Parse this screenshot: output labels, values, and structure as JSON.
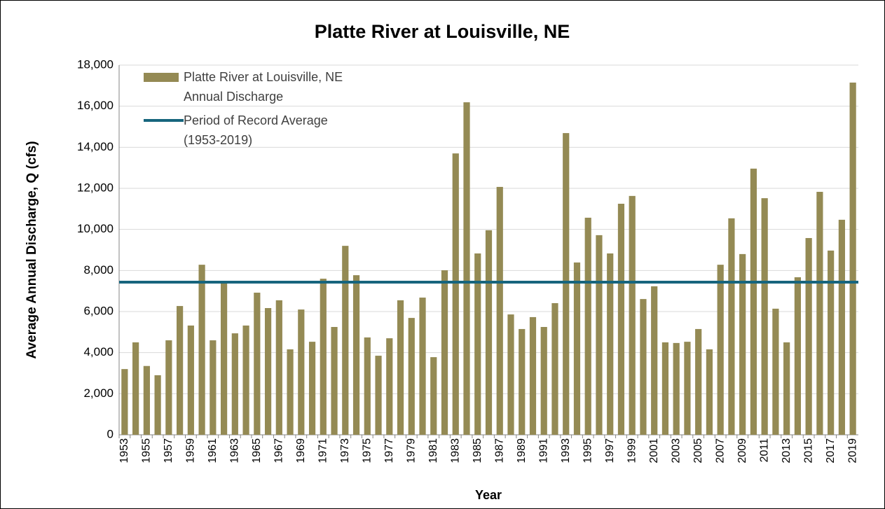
{
  "chart_data": {
    "type": "bar",
    "title": "Platte River at Louisville, NE",
    "x_label": "Year",
    "y_label": "Average Annual Discharge, Q (cfs)",
    "categories": [
      "1953",
      null,
      "1955",
      null,
      "1957",
      null,
      "1959",
      null,
      "1961",
      null,
      "1963",
      null,
      "1965",
      null,
      "1967",
      null,
      "1969",
      null,
      "1971",
      null,
      "1973",
      null,
      "1975",
      null,
      "1977",
      null,
      "1979",
      null,
      "1981",
      null,
      "1983",
      null,
      "1985",
      null,
      "1987",
      null,
      "1989",
      null,
      "1991",
      null,
      "1993",
      null,
      "1995",
      null,
      "1997",
      null,
      "1999",
      null,
      "2001",
      null,
      "2003",
      null,
      "2005",
      null,
      "2007",
      null,
      "2009",
      null,
      "2011",
      null,
      "2013",
      null,
      "2015",
      null,
      "2017",
      null,
      "2019"
    ],
    "series": [
      {
        "name": "Platte River at Louisville, NE Annual Discharge",
        "color": "#948a54",
        "values": [
          3200,
          4500,
          3350,
          2900,
          4600,
          6270,
          5320,
          8280,
          4600,
          7470,
          4940,
          5320,
          6920,
          6170,
          6550,
          4160,
          6100,
          4530,
          7600,
          5250,
          9200,
          7770,
          4740,
          3850,
          4700,
          6550,
          5690,
          6680,
          3780,
          8010,
          13700,
          16190,
          8830,
          9960,
          12070,
          5860,
          5150,
          5730,
          5250,
          6410,
          14690,
          8390,
          10570,
          9720,
          8830,
          11250,
          11630,
          6610,
          7230,
          4500,
          4470,
          4530,
          5150,
          4160,
          8280,
          10540,
          8800,
          12960,
          11520,
          6140,
          4500,
          7670,
          9580,
          11830,
          8970,
          10470,
          17150
        ]
      }
    ],
    "average_line": {
      "name": "Period of Record Average (1953-2019)",
      "color": "#17657d",
      "value": 7430
    },
    "ylim": [
      0,
      18000
    ],
    "yticks": [
      0,
      {
        "value": 2000,
        "label": "2,000"
      },
      {
        "value": 4000,
        "label": "4,000"
      },
      {
        "value": 6000,
        "label": "6,000"
      },
      {
        "value": 8000,
        "label": "8,000"
      },
      {
        "value": 10000,
        "label": "10,000"
      },
      {
        "value": 12000,
        "label": "12,000"
      },
      {
        "value": 14000,
        "label": "14,000"
      },
      {
        "value": 16000,
        "label": "16,000"
      },
      {
        "value": 18000,
        "label": "18,000"
      }
    ],
    "grid": true
  }
}
